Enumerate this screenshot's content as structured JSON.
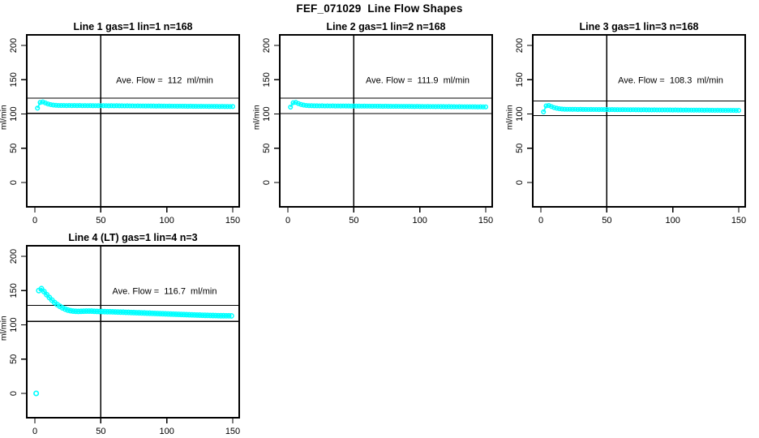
{
  "page": {
    "title": "FEF_071029  Line Flow Shapes"
  },
  "colors": {
    "marker": "#00ffff",
    "axis": "#000000",
    "background": "#ffffff",
    "text": "#000000"
  },
  "chart_data": [
    {
      "type": "scatter",
      "title": "Line 1 gas=1 lin=1 n=168",
      "annotation": "Ave. Flow =  112  ml/min",
      "avg_flow_ml_min": 112,
      "n": 168,
      "grid_position": {
        "row": 0,
        "col": 0
      },
      "xlim": [
        -6,
        157
      ],
      "ylim": [
        -35,
        215
      ],
      "x_ticks": [
        0,
        50,
        100,
        150
      ],
      "y_ticks": [
        0,
        50,
        100,
        150,
        200
      ],
      "ylabel": "ml/min",
      "xlabel": "",
      "grid": false,
      "ref_lines": {
        "vertical_x": 50,
        "upper": 123.2,
        "lower": 100.8
      },
      "marker": "open-circle",
      "marker_r": 2.3,
      "line_w": 1.6,
      "outliers": [],
      "points": [
        [
          2,
          108.5
        ],
        [
          4,
          116.8
        ],
        [
          6,
          117.6
        ],
        [
          8,
          116.0
        ],
        [
          10,
          114.6
        ],
        [
          12,
          113.6
        ],
        [
          14,
          113.0
        ],
        [
          16,
          112.6
        ],
        [
          18,
          112.4
        ],
        [
          20,
          112.3
        ],
        [
          22,
          112.4
        ],
        [
          24,
          112.2
        ],
        [
          26,
          112.4
        ],
        [
          28,
          112.2
        ],
        [
          30,
          112.3
        ],
        [
          32,
          112.2
        ],
        [
          34,
          112.3
        ],
        [
          36,
          112.1
        ],
        [
          38,
          112.2
        ],
        [
          40,
          112.1
        ],
        [
          42,
          112.2
        ],
        [
          44,
          112.0
        ],
        [
          46,
          112.1
        ],
        [
          48,
          112.0
        ],
        [
          50,
          112.1
        ],
        [
          52,
          112.0
        ],
        [
          54,
          112.1
        ],
        [
          56,
          111.9
        ],
        [
          58,
          112.0
        ],
        [
          60,
          111.9
        ],
        [
          62,
          112.0
        ],
        [
          64,
          111.9
        ],
        [
          66,
          111.9
        ],
        [
          68,
          111.8
        ],
        [
          70,
          111.9
        ],
        [
          72,
          111.8
        ],
        [
          74,
          111.8
        ],
        [
          76,
          111.7
        ],
        [
          78,
          111.8
        ],
        [
          80,
          111.7
        ],
        [
          82,
          111.7
        ],
        [
          84,
          111.6
        ],
        [
          86,
          111.7
        ],
        [
          88,
          111.6
        ],
        [
          90,
          111.6
        ],
        [
          92,
          111.5
        ],
        [
          94,
          111.6
        ],
        [
          96,
          111.5
        ],
        [
          98,
          111.5
        ],
        [
          100,
          111.4
        ],
        [
          102,
          111.5
        ],
        [
          104,
          111.4
        ],
        [
          106,
          111.4
        ],
        [
          108,
          111.3
        ],
        [
          110,
          111.4
        ],
        [
          112,
          111.3
        ],
        [
          114,
          111.3
        ],
        [
          116,
          111.2
        ],
        [
          118,
          111.3
        ],
        [
          120,
          111.2
        ],
        [
          122,
          111.2
        ],
        [
          124,
          111.1
        ],
        [
          126,
          111.2
        ],
        [
          128,
          111.1
        ],
        [
          130,
          111.1
        ],
        [
          132,
          111.0
        ],
        [
          134,
          111.1
        ],
        [
          136,
          111.0
        ],
        [
          138,
          111.0
        ],
        [
          140,
          110.9
        ],
        [
          142,
          111.0
        ],
        [
          144,
          110.9
        ],
        [
          146,
          110.9
        ],
        [
          148,
          110.8
        ],
        [
          150,
          110.9
        ]
      ]
    },
    {
      "type": "scatter",
      "title": "Line 2 gas=1 lin=2 n=168",
      "annotation": "Ave. Flow =  111.9  ml/min",
      "avg_flow_ml_min": 111.9,
      "n": 168,
      "grid_position": {
        "row": 0,
        "col": 1
      },
      "xlim": [
        -6,
        157
      ],
      "ylim": [
        -35,
        215
      ],
      "x_ticks": [
        0,
        50,
        100,
        150
      ],
      "y_ticks": [
        0,
        50,
        100,
        150,
        200
      ],
      "ylabel": "ml/min",
      "xlabel": "",
      "grid": false,
      "ref_lines": {
        "vertical_x": 50,
        "upper": 123.1,
        "lower": 100.7
      },
      "marker": "open-circle",
      "marker_r": 2.3,
      "line_w": 1.6,
      "outliers": [],
      "points": [
        [
          2,
          110.0
        ],
        [
          4,
          116.3
        ],
        [
          6,
          116.9
        ],
        [
          8,
          115.2
        ],
        [
          10,
          113.8
        ],
        [
          12,
          112.9
        ],
        [
          14,
          112.4
        ],
        [
          16,
          112.1
        ],
        [
          18,
          112.0
        ],
        [
          20,
          111.9
        ],
        [
          22,
          111.9
        ],
        [
          24,
          111.8
        ],
        [
          26,
          111.9
        ],
        [
          28,
          111.7
        ],
        [
          30,
          111.8
        ],
        [
          32,
          111.7
        ],
        [
          34,
          111.8
        ],
        [
          36,
          111.6
        ],
        [
          38,
          111.7
        ],
        [
          40,
          111.6
        ],
        [
          42,
          111.7
        ],
        [
          44,
          111.6
        ],
        [
          46,
          111.6
        ],
        [
          48,
          111.5
        ],
        [
          50,
          111.6
        ],
        [
          52,
          111.5
        ],
        [
          54,
          111.5
        ],
        [
          56,
          111.4
        ],
        [
          58,
          111.5
        ],
        [
          60,
          111.4
        ],
        [
          62,
          111.4
        ],
        [
          64,
          111.3
        ],
        [
          66,
          111.4
        ],
        [
          68,
          111.3
        ],
        [
          70,
          111.3
        ],
        [
          72,
          111.2
        ],
        [
          74,
          111.3
        ],
        [
          76,
          111.2
        ],
        [
          78,
          111.2
        ],
        [
          80,
          111.1
        ],
        [
          82,
          111.2
        ],
        [
          84,
          111.1
        ],
        [
          86,
          111.1
        ],
        [
          88,
          111.0
        ],
        [
          90,
          111.1
        ],
        [
          92,
          111.0
        ],
        [
          94,
          111.0
        ],
        [
          96,
          110.9
        ],
        [
          98,
          111.0
        ],
        [
          100,
          110.9
        ],
        [
          102,
          110.9
        ],
        [
          104,
          110.8
        ],
        [
          106,
          110.9
        ],
        [
          108,
          110.8
        ],
        [
          110,
          110.8
        ],
        [
          112,
          110.7
        ],
        [
          114,
          110.8
        ],
        [
          116,
          110.7
        ],
        [
          118,
          110.7
        ],
        [
          120,
          110.6
        ],
        [
          122,
          110.7
        ],
        [
          124,
          110.6
        ],
        [
          126,
          110.6
        ],
        [
          128,
          110.5
        ],
        [
          130,
          110.6
        ],
        [
          132,
          110.5
        ],
        [
          134,
          110.5
        ],
        [
          136,
          110.4
        ],
        [
          138,
          110.5
        ],
        [
          140,
          110.4
        ],
        [
          142,
          110.4
        ],
        [
          144,
          110.3
        ],
        [
          146,
          110.4
        ],
        [
          148,
          110.3
        ],
        [
          150,
          110.3
        ]
      ]
    },
    {
      "type": "scatter",
      "title": "Line 3 gas=1 lin=3 n=168",
      "annotation": "Ave. Flow =  108.3  ml/min",
      "avg_flow_ml_min": 108.3,
      "n": 168,
      "grid_position": {
        "row": 0,
        "col": 2
      },
      "xlim": [
        -6,
        157
      ],
      "ylim": [
        -35,
        215
      ],
      "x_ticks": [
        0,
        50,
        100,
        150
      ],
      "y_ticks": [
        0,
        50,
        100,
        150,
        200
      ],
      "ylabel": "ml/min",
      "xlabel": "",
      "grid": false,
      "ref_lines": {
        "vertical_x": 50,
        "upper": 119.1,
        "lower": 97.5
      },
      "marker": "open-circle",
      "marker_r": 2.3,
      "line_w": 1.6,
      "outliers": [],
      "points": [
        [
          2,
          103.0
        ],
        [
          4,
          111.8
        ],
        [
          6,
          112.4
        ],
        [
          8,
          110.8
        ],
        [
          10,
          109.3
        ],
        [
          12,
          108.3
        ],
        [
          14,
          107.6
        ],
        [
          16,
          107.2
        ],
        [
          18,
          106.9
        ],
        [
          20,
          106.8
        ],
        [
          22,
          106.8
        ],
        [
          24,
          106.7
        ],
        [
          26,
          106.8
        ],
        [
          28,
          106.6
        ],
        [
          30,
          106.7
        ],
        [
          32,
          106.6
        ],
        [
          34,
          106.6
        ],
        [
          36,
          106.5
        ],
        [
          38,
          106.6
        ],
        [
          40,
          106.5
        ],
        [
          42,
          106.5
        ],
        [
          44,
          106.4
        ],
        [
          46,
          106.5
        ],
        [
          48,
          106.4
        ],
        [
          50,
          106.4
        ],
        [
          52,
          106.3
        ],
        [
          54,
          106.4
        ],
        [
          56,
          106.3
        ],
        [
          58,
          106.3
        ],
        [
          60,
          106.2
        ],
        [
          62,
          106.3
        ],
        [
          64,
          106.2
        ],
        [
          66,
          106.2
        ],
        [
          68,
          106.1
        ],
        [
          70,
          106.2
        ],
        [
          72,
          106.1
        ],
        [
          74,
          106.1
        ],
        [
          76,
          106.0
        ],
        [
          78,
          106.1
        ],
        [
          80,
          106.0
        ],
        [
          82,
          106.0
        ],
        [
          84,
          105.9
        ],
        [
          86,
          106.0
        ],
        [
          88,
          105.9
        ],
        [
          90,
          105.9
        ],
        [
          92,
          105.8
        ],
        [
          94,
          105.9
        ],
        [
          96,
          105.8
        ],
        [
          98,
          105.8
        ],
        [
          100,
          105.7
        ],
        [
          102,
          105.8
        ],
        [
          104,
          105.7
        ],
        [
          106,
          105.7
        ],
        [
          108,
          105.6
        ],
        [
          110,
          105.7
        ],
        [
          112,
          105.6
        ],
        [
          114,
          105.6
        ],
        [
          116,
          105.5
        ],
        [
          118,
          105.6
        ],
        [
          120,
          105.5
        ],
        [
          122,
          105.5
        ],
        [
          124,
          105.4
        ],
        [
          126,
          105.5
        ],
        [
          128,
          105.4
        ],
        [
          130,
          105.4
        ],
        [
          132,
          105.3
        ],
        [
          134,
          105.4
        ],
        [
          136,
          105.3
        ],
        [
          138,
          105.3
        ],
        [
          140,
          105.2
        ],
        [
          142,
          105.3
        ],
        [
          144,
          105.2
        ],
        [
          146,
          105.2
        ],
        [
          148,
          105.1
        ],
        [
          150,
          105.2
        ]
      ]
    },
    {
      "type": "scatter",
      "title": "Line 4 (LT) gas=1 lin=4 n=3",
      "annotation": "Ave. Flow =  116.7  ml/min",
      "avg_flow_ml_min": 116.7,
      "n": 3,
      "grid_position": {
        "row": 1,
        "col": 0
      },
      "xlim": [
        -6,
        157
      ],
      "ylim": [
        -35,
        215
      ],
      "x_ticks": [
        0,
        50,
        100,
        150
      ],
      "y_ticks": [
        0,
        50,
        100,
        150,
        200
      ],
      "ylabel": "ml/min",
      "xlabel": "",
      "grid": false,
      "ref_lines": {
        "vertical_x": 50,
        "upper": 128.4,
        "lower": 105.0
      },
      "marker": "open-circle",
      "marker_r": 2.7,
      "line_w": 2.4,
      "outliers": [
        [
          1,
          0
        ]
      ],
      "points": [
        [
          3,
          150.0
        ],
        [
          5,
          152.8
        ],
        [
          7,
          148.5
        ],
        [
          9,
          144.0
        ],
        [
          11,
          139.8
        ],
        [
          13,
          136.0
        ],
        [
          15,
          132.5
        ],
        [
          17,
          129.5
        ],
        [
          19,
          127.0
        ],
        [
          21,
          124.8
        ],
        [
          23,
          123.0
        ],
        [
          25,
          121.6
        ],
        [
          27,
          120.6
        ],
        [
          29,
          120.0
        ],
        [
          31,
          119.7
        ],
        [
          33,
          119.6
        ],
        [
          35,
          119.7
        ],
        [
          37,
          119.9
        ],
        [
          39,
          120.1
        ],
        [
          41,
          120.1
        ],
        [
          43,
          120.0
        ],
        [
          45,
          119.8
        ],
        [
          47,
          119.6
        ],
        [
          49,
          119.5
        ],
        [
          51,
          119.4
        ],
        [
          53,
          119.3
        ],
        [
          55,
          119.2
        ],
        [
          57,
          119.1
        ],
        [
          59,
          119.0
        ],
        [
          61,
          118.9
        ],
        [
          63,
          118.7
        ],
        [
          65,
          118.6
        ],
        [
          67,
          118.5
        ],
        [
          69,
          118.3
        ],
        [
          71,
          118.2
        ],
        [
          73,
          118.0
        ],
        [
          75,
          117.9
        ],
        [
          77,
          117.7
        ],
        [
          79,
          117.6
        ],
        [
          81,
          117.4
        ],
        [
          83,
          117.3
        ],
        [
          85,
          117.1
        ],
        [
          87,
          117.0
        ],
        [
          89,
          116.8
        ],
        [
          91,
          116.7
        ],
        [
          93,
          116.5
        ],
        [
          95,
          116.4
        ],
        [
          97,
          116.2
        ],
        [
          99,
          116.1
        ],
        [
          101,
          115.9
        ],
        [
          103,
          115.8
        ],
        [
          105,
          115.6
        ],
        [
          107,
          115.5
        ],
        [
          109,
          115.3
        ],
        [
          111,
          115.2
        ],
        [
          113,
          115.0
        ],
        [
          115,
          114.9
        ],
        [
          117,
          114.7
        ],
        [
          119,
          114.6
        ],
        [
          121,
          114.4
        ],
        [
          123,
          114.3
        ],
        [
          125,
          114.2
        ],
        [
          127,
          114.0
        ],
        [
          129,
          113.9
        ],
        [
          131,
          113.8
        ],
        [
          133,
          113.7
        ],
        [
          135,
          113.6
        ],
        [
          137,
          113.5
        ],
        [
          139,
          113.4
        ],
        [
          141,
          113.3
        ],
        [
          143,
          113.3
        ],
        [
          145,
          113.2
        ],
        [
          147,
          113.2
        ],
        [
          149,
          113.1
        ]
      ]
    }
  ]
}
